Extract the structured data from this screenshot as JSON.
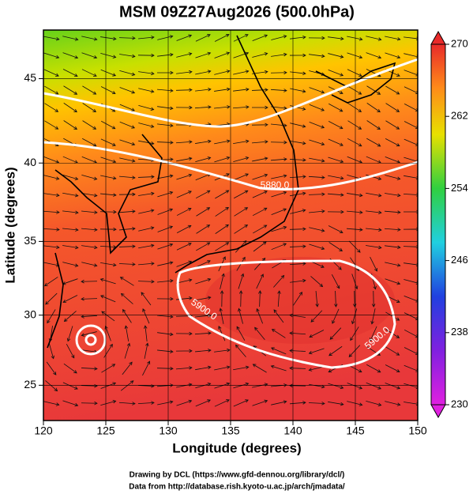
{
  "chart_data": {
    "type": "map",
    "title": "MSM 09Z27Aug2026 (500.0hPa)",
    "x_label": "Longitude (degrees)",
    "y_label": "Latitude  (degrees)",
    "projection": "mercator",
    "xlim": [
      120,
      150
    ],
    "xticks": [
      120,
      125,
      130,
      135,
      140,
      145,
      150
    ],
    "ylim": [
      22.4,
      47.7
    ],
    "yticks": [
      25,
      30,
      35,
      40,
      45
    ],
    "colorbar": {
      "lim": [
        230,
        270
      ],
      "ticks": [
        230,
        238,
        246,
        254,
        262,
        270
      ]
    },
    "annotations": [
      "5880.0",
      "5900.0",
      "5900.0"
    ],
    "footer": [
      "Drawing by DCL (https://www.gfd-dennou.org/library/dcl/)",
      "Data from http://database.rish.kyoto-u.ac.jp/arch/jmadata/"
    ]
  }
}
